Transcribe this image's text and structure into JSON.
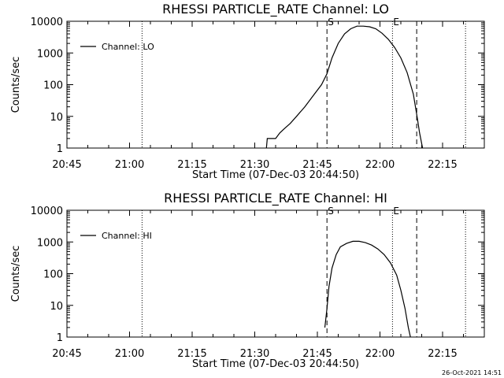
{
  "footer": {
    "timestamp": "26-Oct-2021 14:51"
  },
  "chart_data": [
    {
      "type": "line",
      "title": "RHESSI PARTICLE_RATE Channel: LO",
      "xlabel": "Start Time (07-Dec-03 20:44:50)",
      "ylabel": "Counts/sec",
      "x_ticks": [
        "20:45",
        "21:00",
        "21:15",
        "21:30",
        "21:45",
        "22:00",
        "22:15"
      ],
      "x_tick_minutes": [
        45,
        60,
        75,
        90,
        105,
        120,
        135
      ],
      "xlim_minutes_after_20h": [
        45,
        145
      ],
      "y_scale": "log",
      "ylim": [
        1,
        10000
      ],
      "y_ticks": [
        "1",
        "10",
        "100",
        "1000",
        "10000"
      ],
      "y_tick_values": [
        1,
        10,
        100,
        1000,
        10000
      ],
      "legend": {
        "position": "top-left",
        "entries": [
          "Channel: LO"
        ]
      },
      "markers": [
        {
          "label": "",
          "style": "dotted",
          "minute": 63
        },
        {
          "label": "S",
          "style": "dashed",
          "minute": 107.3
        },
        {
          "label": "E",
          "style": "dotted",
          "minute": 123
        },
        {
          "label": "",
          "style": "dashed",
          "minute": 128.8
        },
        {
          "label": "",
          "style": "dotted",
          "minute": 140.5
        }
      ],
      "series": [
        {
          "name": "Channel: LO",
          "x_minutes": [
            92.8,
            93.0,
            95.0,
            96.0,
            97.0,
            98.5,
            100.0,
            102.0,
            104.0,
            106.0,
            107.3,
            108.5,
            110.0,
            111.5,
            113.0,
            114.5,
            116.0,
            117.5,
            119.0,
            120.5,
            122.0,
            123.5,
            125.0,
            126.5,
            128.0,
            129.0,
            129.5,
            130.2
          ],
          "values": [
            1,
            2,
            2,
            3,
            4,
            6,
            10,
            20,
            45,
            100,
            220,
            700,
            2000,
            4000,
            5800,
            7000,
            7000,
            6700,
            5800,
            4200,
            2700,
            1500,
            700,
            240,
            50,
            8,
            3,
            1
          ]
        }
      ]
    },
    {
      "type": "line",
      "title": "RHESSI PARTICLE_RATE Channel: HI",
      "xlabel": "Start Time (07-Dec-03 20:44:50)",
      "ylabel": "Counts/sec",
      "x_ticks": [
        "20:45",
        "21:00",
        "21:15",
        "21:30",
        "21:45",
        "22:00",
        "22:15"
      ],
      "x_tick_minutes": [
        45,
        60,
        75,
        90,
        105,
        120,
        135
      ],
      "xlim_minutes_after_20h": [
        45,
        145
      ],
      "y_scale": "log",
      "ylim": [
        1,
        10000
      ],
      "y_ticks": [
        "1",
        "10",
        "100",
        "1000",
        "10000"
      ],
      "y_tick_values": [
        1,
        10,
        100,
        1000,
        10000
      ],
      "legend": {
        "position": "top-left",
        "entries": [
          "Channel: HI"
        ]
      },
      "markers": [
        {
          "label": "",
          "style": "dotted",
          "minute": 63
        },
        {
          "label": "S",
          "style": "dashed",
          "minute": 107.3
        },
        {
          "label": "E",
          "style": "dotted",
          "minute": 123
        },
        {
          "label": "",
          "style": "dashed",
          "minute": 128.8
        },
        {
          "label": "",
          "style": "dotted",
          "minute": 140.5
        }
      ],
      "series": [
        {
          "name": "Channel: HI",
          "x_minutes": [
            106.8,
            107.3,
            107.8,
            108.5,
            109.5,
            110.5,
            112.0,
            113.5,
            115.0,
            116.5,
            118.0,
            119.5,
            121.0,
            122.5,
            124.0,
            125.0,
            126.0,
            126.8,
            127.3
          ],
          "values": [
            2,
            8,
            40,
            150,
            400,
            700,
            900,
            1050,
            1050,
            950,
            800,
            600,
            400,
            220,
            90,
            30,
            8,
            2,
            1
          ]
        }
      ]
    }
  ]
}
